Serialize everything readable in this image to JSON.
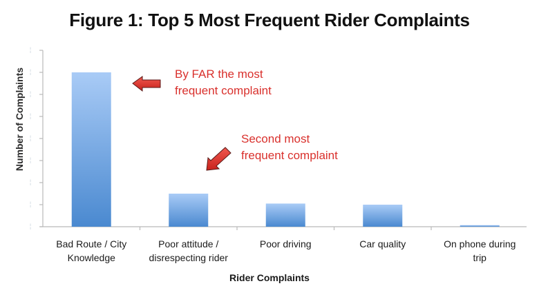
{
  "chart_data": {
    "type": "bar",
    "title": "Figure 1: Top 5 Most Frequent Rider Complaints",
    "xlabel": "Rider Complaints",
    "ylabel": "Number of Complaints",
    "categories": [
      "Bad Route / City Knowledge",
      "Poor attitude / disrespecting rider",
      "Poor driving",
      "Car quality",
      "On phone during trip"
    ],
    "category_lines": [
      [
        "Bad Route / City",
        "Knowledge"
      ],
      [
        "Poor attitude /",
        "disrespecting rider"
      ],
      [
        "Poor driving"
      ],
      [
        "Car quality"
      ],
      [
        "On phone during",
        "trip"
      ]
    ],
    "values": [
      7.0,
      1.5,
      1.05,
      1.0,
      0.07
    ],
    "ylim": [
      0,
      8
    ],
    "ytick_count": 9,
    "ytick_labels_visible": false,
    "grid": false,
    "legend": null,
    "bar_color_top": "#a9cbf6",
    "bar_color_bottom": "#4a89d0",
    "annotations": [
      {
        "text_lines": [
          "By FAR the most",
          "frequent complaint"
        ],
        "color": "#d9302c",
        "arrow": "left",
        "target": "Bad Route / City Knowledge"
      },
      {
        "text_lines": [
          "Second most",
          "frequent complaint"
        ],
        "color": "#d9302c",
        "arrow": "down-left",
        "target": "Poor attitude / disrespecting rider"
      }
    ]
  },
  "text": {
    "title": "Figure 1: Top 5 Most Frequent Rider Complaints",
    "ylabel": "Number of Complaints",
    "xlabel": "Rider Complaints",
    "annot1_line1": "By FAR the most",
    "annot1_line2": "frequent complaint",
    "annot2_line1": "Second most",
    "annot2_line2": "frequent complaint"
  }
}
